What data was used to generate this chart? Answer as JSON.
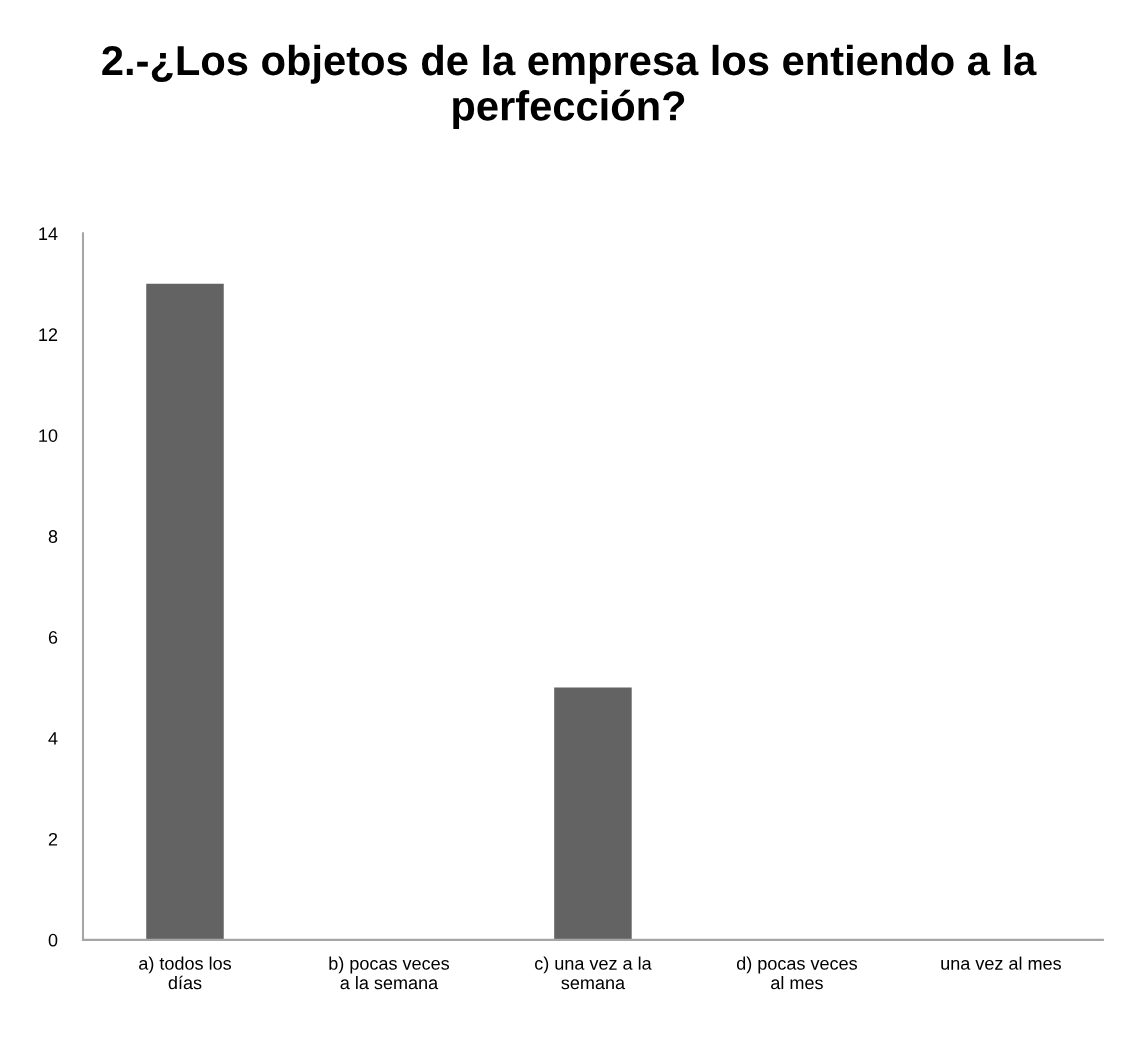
{
  "chart_data": {
    "type": "bar",
    "title": "2.-¿Los objetos de la empresa los entiendo a la perfección?",
    "categories": [
      "a) todos los días",
      "b) pocas veces a la semana",
      "c) una vez a la semana",
      "d) pocas veces al mes",
      "una vez al mes"
    ],
    "values": [
      13,
      0,
      5,
      0,
      0
    ],
    "color": "#636363",
    "ylim": [
      0,
      14
    ],
    "yticks": [
      0,
      2,
      4,
      6,
      8,
      10,
      12,
      14
    ],
    "grid": false
  }
}
